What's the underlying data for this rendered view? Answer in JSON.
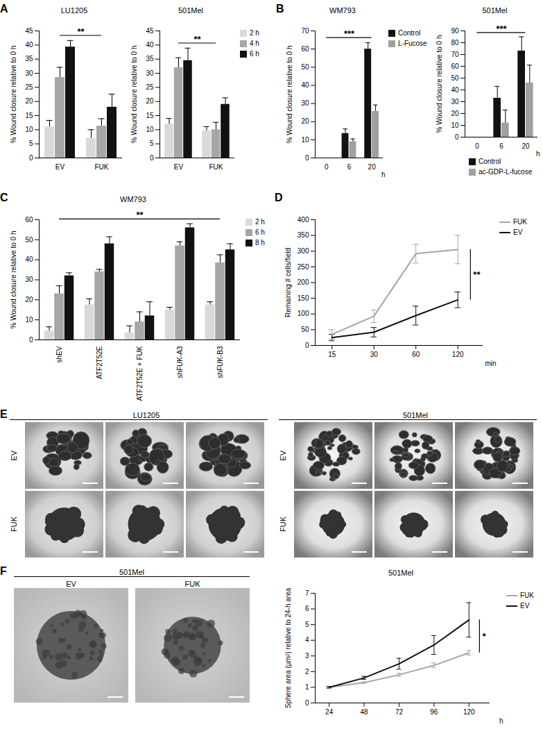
{
  "chart_data": [
    {
      "panel": "A",
      "type": "bar",
      "title": "LU1205",
      "categories": [
        "EV",
        "FUK"
      ],
      "y_label": "% Wound closure relative to 0 h",
      "series": [
        {
          "color": "#d9d9d9",
          "values": [
            11,
            7
          ],
          "errors": [
            2.3,
            3
          ]
        },
        {
          "color": "#a6a6a6",
          "values": [
            28.5,
            11.3
          ],
          "errors": [
            3.6,
            2.6
          ]
        },
        {
          "color": "#111111",
          "values": [
            39.3,
            18
          ],
          "errors": [
            2.3,
            4.6
          ]
        }
      ],
      "ylim": [
        0,
        45
      ],
      "yticks": [
        0,
        5,
        10,
        15,
        20,
        25,
        30,
        35,
        40,
        45
      ],
      "annotations": [
        "**"
      ]
    },
    {
      "type": "bar",
      "title": "501Mel",
      "categories": [
        "EV",
        "FUK"
      ],
      "y_label": "% Wound closure relative to 0 h",
      "series": [
        {
          "name": "2 h",
          "color": "#d9d9d9",
          "values": [
            12,
            9.6
          ],
          "errors": [
            2,
            1.5
          ]
        },
        {
          "name": "4 h",
          "color": "#a6a6a6",
          "values": [
            32,
            10
          ],
          "errors": [
            3.5,
            2.6
          ]
        },
        {
          "name": "6 h",
          "color": "#111111",
          "values": [
            34.5,
            19
          ],
          "errors": [
            4.4,
            2.3
          ]
        }
      ],
      "ylim": [
        0,
        45
      ],
      "yticks": [
        0,
        5,
        10,
        15,
        20,
        25,
        30,
        35,
        40,
        45
      ],
      "legend": "right",
      "annotations": [
        "**"
      ]
    },
    {
      "panel": "B",
      "type": "bar",
      "title": "WM793",
      "categories": [
        "0",
        "6",
        "20"
      ],
      "x_label": "h",
      "y_label": "% Wound closure relative to 0 h",
      "series": [
        {
          "name": "Control",
          "color": "#111111",
          "values": [
            0,
            13.5,
            60
          ],
          "errors": [
            0,
            2.5,
            3.5
          ]
        },
        {
          "name": "L-Fucose",
          "color": "#a0a0a0",
          "values": [
            0,
            9,
            25.7
          ],
          "errors": [
            0,
            1.5,
            3.5
          ]
        }
      ],
      "ylim": [
        0,
        70
      ],
      "yticks": [
        0,
        10,
        20,
        30,
        40,
        50,
        60,
        70
      ],
      "legend": "right",
      "annotations": [
        "***"
      ]
    },
    {
      "type": "bar",
      "title": "501Mel",
      "categories": [
        "0",
        "6",
        "20"
      ],
      "x_label": "h",
      "y_label": "% Wound closure relative to 0 h",
      "series": [
        {
          "name": "Control",
          "color": "#111111",
          "values": [
            0,
            33,
            73
          ],
          "errors": [
            0,
            10,
            12
          ]
        },
        {
          "name": "ac-GDP-L-fucose",
          "color": "#a0a0a0",
          "values": [
            0,
            12,
            46
          ],
          "errors": [
            0,
            11,
            15
          ]
        }
      ],
      "ylim": [
        0,
        90
      ],
      "yticks": [
        0,
        10,
        20,
        30,
        40,
        50,
        60,
        70,
        80,
        90
      ],
      "legend": "bottom",
      "annotations": [
        "***"
      ]
    },
    {
      "panel": "C",
      "type": "bar",
      "title": "WM793",
      "categories": [
        "shEV",
        "ATF2T52E",
        "ATF2T52E + FUK",
        "shFUK-A3",
        "shFUK-B3"
      ],
      "y_label": "% Wound closure relative to 0 h",
      "series": [
        {
          "name": "2 h",
          "color": "#d9d9d9",
          "values": [
            4.5,
            17.5,
            3.5,
            15,
            17.5
          ],
          "errors": [
            2,
            3,
            3.5,
            1.3,
            1.5
          ]
        },
        {
          "name": "6 h",
          "color": "#a6a6a6",
          "values": [
            23,
            34,
            9,
            47,
            38.5
          ],
          "errors": [
            4,
            1.2,
            5,
            2,
            4
          ]
        },
        {
          "name": "8 h",
          "color": "#111111",
          "values": [
            32,
            48,
            12,
            56,
            45
          ],
          "errors": [
            1.5,
            3.5,
            7,
            2,
            3
          ]
        }
      ],
      "ylim": [
        0,
        60
      ],
      "yticks": [
        0,
        10,
        20,
        30,
        40,
        50,
        60
      ],
      "legend": "right",
      "annotations": [
        "**"
      ]
    },
    {
      "panel": "D",
      "type": "line",
      "categories": [
        "15",
        "30",
        "60",
        "120"
      ],
      "x_label": "min",
      "y_label": "Remaining # cells/field",
      "series": [
        {
          "name": "FUK",
          "color": "#a6a6a6",
          "values": [
            35,
            93,
            292,
            305
          ],
          "errors": [
            15,
            20,
            30,
            45
          ]
        },
        {
          "name": "EV",
          "color": "#111111",
          "values": [
            25,
            42,
            95,
            145
          ],
          "errors": [
            10,
            15,
            30,
            25
          ]
        }
      ],
      "ylim": [
        0,
        400
      ],
      "yticks": [
        0,
        50,
        100,
        150,
        200,
        250,
        300,
        350,
        400
      ],
      "legend": "right",
      "annotations": [
        "**"
      ]
    },
    {
      "type": "line",
      "title": "501Mel",
      "categories": [
        "24",
        "48",
        "72",
        "96",
        "120"
      ],
      "x_label": "h",
      "y_label": "Sphere area (µm²) relative to 24-h area",
      "series": [
        {
          "name": "FUK",
          "color": "#a6a6a6",
          "values": [
            1,
            1.3,
            1.8,
            2.4,
            3.2
          ],
          "errors": [
            0.05,
            0.05,
            0.1,
            0.15,
            0.15
          ]
        },
        {
          "name": "EV",
          "color": "#111111",
          "values": [
            1,
            1.6,
            2.5,
            3.7,
            5.3
          ],
          "errors": [
            0.05,
            0.1,
            0.35,
            0.6,
            1.1
          ]
        }
      ],
      "ylim": [
        0,
        7
      ],
      "yticks": [
        0,
        1,
        2,
        3,
        4,
        5,
        6,
        7
      ],
      "legend": "right",
      "annotations": [
        "*"
      ]
    }
  ],
  "image_panels": [
    {
      "panel": "E",
      "groups": [
        {
          "title": "LU1205",
          "rows": [
            "EV",
            "FUK"
          ],
          "columns": 3
        },
        {
          "title": "501Mel",
          "rows": [
            "EV",
            "FUK"
          ],
          "columns": 3
        }
      ]
    },
    {
      "panel": "F",
      "title": "501Mel",
      "images": [
        "EV",
        "FUK"
      ]
    }
  ]
}
